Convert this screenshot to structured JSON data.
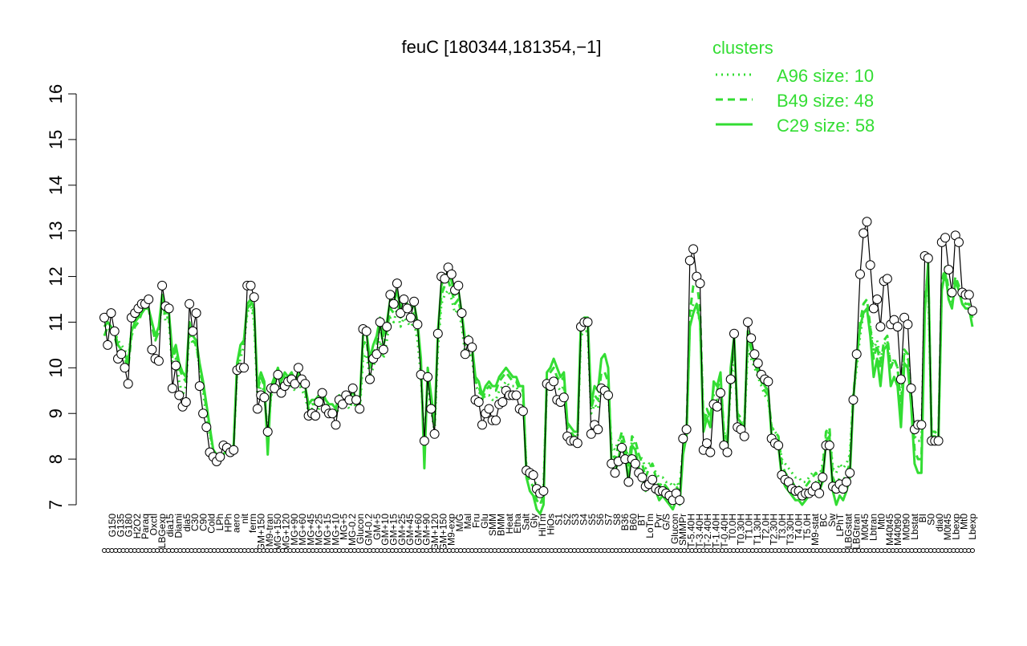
{
  "chart_data": {
    "type": "line",
    "title": "feuC [180344,181354,−1]",
    "xlabel": "",
    "ylabel": "",
    "ylim": [
      7,
      16
    ],
    "yticks": [
      7,
      8,
      9,
      10,
      11,
      12,
      13,
      14,
      15,
      16
    ],
    "grid": false,
    "legend": {
      "title": "clusters",
      "placement": "top-right",
      "color": "#33dd33",
      "entries": [
        {
          "label": "A96 size: 10",
          "style": "dotted"
        },
        {
          "label": "B49 size: 48",
          "style": "dashed"
        },
        {
          "label": "C29 size: 58",
          "style": "solid"
        }
      ]
    },
    "colors": {
      "profile": "#000000",
      "cluster": "#33dd33",
      "point_fill": "#ffffff"
    },
    "x_tick_labels": [
      "G150",
      "G135",
      "G180",
      "H2O2",
      "Paraq",
      "Oxctl",
      "LBGexp",
      "dia15",
      "Diami",
      "dia5",
      "C30",
      "C90",
      "Cold",
      "LPh",
      "HPh",
      "aero",
      "nit",
      "ferm",
      "GM+150",
      "M9-tran",
      "MG+150",
      "MG+120",
      "MG+90",
      "MG+60",
      "MG+45",
      "MG+25",
      "MG+15",
      "MG+10",
      "MG+5",
      "MG-0.2",
      "Glucon",
      "GM-0.2",
      "GM+5",
      "GM+10",
      "GM+15",
      "GM+25",
      "GM+45",
      "GM+60",
      "GM+90",
      "GM+120",
      "GM+150",
      "M9-exp",
      "M/G",
      "Mal",
      "Fru",
      "Glu",
      "SMM",
      "BMM",
      "Heat",
      "Etha",
      "Salt",
      "Gly",
      "HiTm",
      "HiOs",
      "S1",
      "S2",
      "S3",
      "S4",
      "S5",
      "S6",
      "S7",
      "S8",
      "B36",
      "B60",
      "BT",
      "LoTm",
      "Pyr",
      "G/S",
      "Glucon",
      "SMMPr",
      "T-5.40H",
      "T-3.40H",
      "T-2.40H",
      "T-1.40H",
      "T-0.40H",
      "T0.0H",
      "T0.30H",
      "T1.0H",
      "T1.30H",
      "T2.0H",
      "T2.30H",
      "T3.0H",
      "T3.30H",
      "T4.0H",
      "T5.0H",
      "M9-stat",
      "BC",
      "Sw",
      "LPhT",
      "LBGstat",
      "LBGtran",
      "M0t45",
      "Lbtran",
      "Mt0",
      "M40t45",
      "M40t90",
      "M0t90",
      "Lbstat",
      "BI",
      "S0",
      "dia0",
      "M0t45",
      "Lbexp",
      "Mt0",
      "Lbexp"
    ],
    "series": [
      {
        "values": [
          11.1,
          10.5,
          11.2,
          10.8,
          10.2,
          10.3,
          10.0,
          9.65,
          11.1,
          11.2,
          11.3,
          11.4,
          11.4,
          11.5,
          10.4,
          10.2,
          10.15,
          11.8,
          11.35,
          11.3,
          9.55,
          10.05,
          9.4,
          9.15,
          9.25,
          11.4,
          10.8,
          11.2,
          9.6,
          9.0,
          8.7,
          8.15,
          8.05,
          7.95,
          8.05,
          8.3,
          8.25,
          8.15,
          8.2,
          9.95,
          10.0,
          10.0,
          11.8,
          11.8,
          11.55,
          9.1,
          9.4,
          9.35,
          8.6,
          9.55,
          9.55,
          9.85,
          9.45,
          9.6,
          9.7,
          9.75,
          9.65,
          10.0,
          9.75,
          9.65,
          8.95,
          9.0,
          8.95,
          9.25,
          9.45,
          9.1,
          9.0,
          9.0,
          8.75,
          9.3,
          9.2,
          9.4,
          9.3,
          9.55,
          9.3,
          9.1,
          10.85,
          10.8,
          9.75,
          10.2,
          10.3,
          11.0,
          10.4,
          10.9,
          11.6,
          11.4,
          11.85,
          11.2,
          11.5,
          11.3,
          11.1,
          11.45,
          10.95,
          9.85,
          8.4,
          9.8,
          9.1,
          8.55,
          10.75,
          12.0,
          11.95,
          12.2,
          12.05,
          11.7,
          11.8,
          11.2,
          10.3,
          10.6,
          10.45,
          9.3,
          9.25,
          8.75,
          9.0,
          9.1,
          8.85,
          8.85,
          9.2,
          9.25,
          9.5,
          9.4,
          9.4,
          9.4,
          9.1,
          9.05,
          7.75,
          7.7,
          7.65,
          7.35,
          7.25,
          7.3,
          9.65,
          9.6,
          9.7,
          9.3,
          9.25,
          9.35,
          8.5,
          8.4,
          8.4,
          8.35,
          10.9,
          11.0,
          11.0,
          8.55,
          8.75,
          8.65,
          9.55,
          9.5,
          9.4,
          7.9,
          7.7,
          7.95,
          8.25,
          8.0,
          7.5,
          8.0,
          7.9,
          7.7,
          7.6,
          7.4,
          7.45,
          7.55,
          7.35,
          7.3,
          7.3,
          7.25,
          7.2,
          7.1,
          7.25,
          7.1,
          8.45,
          8.65,
          12.35,
          12.6,
          12.0,
          11.85,
          8.2,
          8.35,
          8.15,
          9.2,
          9.15,
          9.45,
          8.3,
          8.15,
          9.75,
          10.75,
          8.7,
          8.65,
          8.5,
          11.0,
          10.65,
          10.3,
          10.1,
          9.85,
          9.75,
          9.7,
          8.45,
          8.35,
          8.3,
          7.65,
          7.55,
          7.5,
          7.35,
          7.3,
          7.3,
          7.2,
          7.25,
          7.25,
          7.3,
          7.4,
          7.25,
          7.6,
          8.3,
          8.3,
          7.4,
          7.35,
          7.45,
          7.35,
          7.5,
          7.7,
          9.3,
          10.3,
          12.05,
          12.95,
          13.2,
          12.25,
          11.3,
          11.5,
          10.9,
          11.9,
          11.95,
          10.95,
          11.05,
          10.9,
          9.75,
          11.1,
          10.95,
          9.55,
          8.65,
          8.75,
          8.75,
          12.45,
          12.4,
          8.4,
          8.4,
          8.4,
          12.75,
          12.85,
          12.15,
          11.65,
          12.9,
          12.75,
          11.65,
          11.6,
          11.6,
          11.25
        ]
      },
      {
        "name": "A96 size: 10",
        "style": "dotted",
        "values": [
          10.9,
          11.0,
          10.9,
          10.8,
          10.6,
          10.5,
          10.4,
          10.2,
          10.8,
          11.1,
          11.2,
          11.3,
          11.3,
          11.3,
          10.9,
          10.6,
          10.8,
          11.5,
          11.0,
          11.0,
          10.0,
          10.2,
          9.7,
          9.4,
          9.6,
          10.8,
          10.5,
          10.5,
          10.0,
          9.5,
          8.9,
          8.5,
          8.2,
          8.1,
          8.1,
          8.2,
          8.3,
          8.2,
          8.3,
          9.9,
          10.2,
          10.5,
          11.2,
          11.4,
          11.0,
          9.4,
          9.6,
          9.5,
          8.5,
          9.4,
          9.5,
          9.6,
          9.5,
          9.6,
          9.6,
          9.6,
          9.5,
          9.7,
          9.5,
          9.4,
          9.0,
          9.1,
          9.0,
          9.1,
          9.2,
          9.1,
          9.0,
          9.0,
          8.9,
          9.2,
          9.1,
          9.2,
          9.1,
          9.3,
          9.1,
          9.0,
          10.2,
          10.3,
          9.8,
          10.0,
          10.3,
          10.6,
          10.2,
          10.6,
          11.1,
          11.0,
          11.3,
          10.9,
          11.1,
          11.0,
          10.9,
          11.0,
          10.6,
          9.8,
          8.4,
          9.6,
          9.1,
          8.6,
          10.4,
          11.4,
          11.6,
          11.7,
          11.5,
          11.2,
          11.3,
          10.9,
          10.3,
          10.4,
          10.2,
          9.6,
          9.5,
          9.3,
          9.4,
          9.4,
          9.3,
          9.3,
          9.5,
          9.6,
          9.7,
          9.6,
          9.6,
          9.6,
          9.4,
          9.4,
          7.8,
          7.7,
          7.6,
          7.4,
          7.3,
          7.4,
          9.6,
          9.7,
          9.8,
          9.6,
          9.5,
          9.6,
          8.6,
          8.5,
          8.5,
          8.5,
          10.7,
          10.8,
          10.8,
          9.0,
          9.2,
          9.1,
          9.6,
          9.6,
          9.5,
          8.3,
          8.2,
          8.4,
          8.5,
          8.3,
          8.0,
          8.4,
          8.3,
          8.1,
          8.0,
          7.8,
          7.9,
          7.9,
          7.7,
          7.6,
          7.6,
          7.5,
          7.5,
          7.4,
          7.5,
          7.4,
          8.2,
          8.5,
          11.0,
          11.4,
          11.3,
          11.0,
          8.8,
          9.0,
          8.8,
          9.4,
          9.3,
          9.6,
          8.6,
          8.4,
          9.6,
          10.3,
          8.9,
          8.8,
          8.7,
          10.4,
          10.2,
          10.0,
          9.8,
          9.6,
          9.4,
          9.3,
          8.7,
          8.6,
          8.5,
          8.0,
          7.9,
          7.8,
          7.7,
          7.6,
          7.6,
          7.5,
          7.5,
          7.6,
          7.7,
          7.7,
          7.6,
          7.9,
          8.5,
          8.6,
          7.8,
          7.7,
          7.9,
          7.8,
          7.9,
          8.1,
          9.4,
          10.0,
          10.7,
          11.2,
          11.3,
          10.9,
          10.4,
          10.6,
          10.2,
          10.5,
          10.6,
          10.0,
          10.2,
          10.0,
          9.3,
          10.3,
          10.2,
          9.4,
          8.5,
          8.4,
          8.4,
          11.6,
          11.8,
          8.6,
          8.6,
          8.5,
          11.8,
          12.0,
          11.6,
          11.4,
          11.9,
          11.7,
          11.4,
          11.3,
          11.3,
          11.1
        ]
      },
      {
        "name": "B49 size: 48",
        "style": "dashed",
        "values": [
          10.7,
          10.9,
          10.8,
          10.7,
          10.4,
          10.3,
          10.2,
          10.0,
          10.7,
          10.9,
          11.0,
          11.2,
          11.3,
          11.3,
          10.9,
          10.6,
          10.8,
          11.5,
          11.1,
          11.1,
          10.2,
          10.4,
          10.0,
          9.8,
          9.7,
          10.9,
          10.6,
          10.5,
          10.0,
          9.6,
          9.1,
          8.6,
          8.2,
          8.1,
          8.1,
          8.1,
          8.2,
          8.2,
          8.3,
          10.0,
          10.4,
          10.6,
          11.3,
          11.4,
          11.2,
          9.5,
          9.8,
          9.6,
          8.4,
          9.5,
          9.7,
          9.9,
          9.6,
          9.8,
          9.7,
          9.8,
          9.6,
          9.8,
          9.6,
          9.5,
          9.1,
          9.2,
          9.2,
          9.3,
          9.4,
          9.2,
          9.1,
          9.1,
          9.0,
          9.3,
          9.2,
          9.3,
          9.2,
          9.4,
          9.2,
          9.1,
          10.5,
          10.6,
          10.0,
          10.3,
          10.5,
          10.9,
          10.5,
          10.8,
          11.3,
          11.2,
          11.5,
          11.1,
          11.3,
          11.2,
          11.1,
          11.2,
          10.9,
          10.1,
          8.1,
          9.9,
          9.3,
          8.7,
          10.7,
          11.6,
          11.8,
          11.9,
          11.7,
          11.4,
          11.5,
          11.1,
          10.5,
          10.6,
          10.4,
          9.7,
          9.6,
          9.3,
          9.5,
          9.6,
          9.5,
          9.5,
          9.7,
          9.8,
          9.9,
          9.8,
          9.7,
          9.7,
          9.5,
          9.5,
          7.7,
          7.5,
          7.4,
          7.1,
          7.0,
          7.2,
          9.8,
          9.9,
          10.0,
          9.8,
          9.7,
          9.8,
          8.7,
          8.6,
          8.5,
          8.5,
          10.9,
          11.0,
          11.0,
          9.1,
          9.4,
          9.3,
          9.9,
          9.9,
          9.7,
          8.2,
          8.0,
          8.3,
          8.6,
          8.3,
          7.8,
          8.5,
          8.4,
          8.1,
          7.9,
          7.6,
          7.8,
          7.9,
          7.6,
          7.4,
          7.5,
          7.4,
          7.3,
          7.2,
          7.4,
          7.3,
          8.2,
          8.6,
          11.2,
          11.8,
          11.9,
          11.3,
          8.8,
          9.1,
          8.9,
          9.6,
          9.5,
          9.8,
          8.6,
          8.4,
          9.8,
          10.5,
          9.0,
          8.9,
          8.8,
          10.7,
          10.4,
          10.1,
          9.9,
          9.7,
          9.5,
          9.4,
          8.7,
          8.6,
          8.5,
          7.9,
          7.7,
          7.6,
          7.5,
          7.4,
          7.4,
          7.3,
          7.4,
          7.5,
          7.6,
          7.7,
          7.5,
          7.8,
          8.6,
          8.7,
          7.6,
          7.4,
          7.6,
          7.5,
          7.7,
          7.9,
          9.4,
          10.2,
          11.0,
          11.4,
          11.5,
          10.9,
          10.2,
          10.5,
          10.0,
          10.6,
          10.7,
          10.0,
          10.2,
          10.0,
          9.1,
          10.4,
          10.3,
          9.5,
          8.2,
          8.0,
          8.0,
          11.4,
          12.2,
          8.6,
          8.6,
          8.5,
          11.9,
          12.2,
          11.7,
          11.5,
          12.0,
          11.8,
          11.5,
          11.4,
          11.4,
          11.1
        ]
      },
      {
        "name": "C29 size: 58",
        "style": "solid",
        "values": [
          10.9,
          11.0,
          10.9,
          10.8,
          10.5,
          10.4,
          10.3,
          10.1,
          10.8,
          11.0,
          11.1,
          11.2,
          11.3,
          11.3,
          11.0,
          10.7,
          10.9,
          11.6,
          11.2,
          11.2,
          10.3,
          10.5,
          10.1,
          9.9,
          9.8,
          11.0,
          10.7,
          10.6,
          10.1,
          9.7,
          9.2,
          8.7,
          8.2,
          8.1,
          8.1,
          8.1,
          8.2,
          8.2,
          8.3,
          10.1,
          10.5,
          10.6,
          11.4,
          11.5,
          11.3,
          9.6,
          9.9,
          9.7,
          8.1,
          9.6,
          9.8,
          10.0,
          9.7,
          9.9,
          9.8,
          9.9,
          9.7,
          9.9,
          9.7,
          9.6,
          9.2,
          9.3,
          9.3,
          9.4,
          9.5,
          9.3,
          9.2,
          9.2,
          9.1,
          9.4,
          9.3,
          9.4,
          9.3,
          9.5,
          9.3,
          9.2,
          10.7,
          10.8,
          10.2,
          10.5,
          10.7,
          11.1,
          10.7,
          11.0,
          11.5,
          11.4,
          11.7,
          11.3,
          11.5,
          11.4,
          11.3,
          11.4,
          11.0,
          10.2,
          7.8,
          10.0,
          9.4,
          8.8,
          10.8,
          11.8,
          12.0,
          12.1,
          11.9,
          11.6,
          11.7,
          11.2,
          10.6,
          10.7,
          10.5,
          9.8,
          9.7,
          9.4,
          9.6,
          9.7,
          9.6,
          9.6,
          9.8,
          9.9,
          10.0,
          9.9,
          9.8,
          9.8,
          9.6,
          9.6,
          7.6,
          7.3,
          7.2,
          6.9,
          6.8,
          7.0,
          9.9,
          10.0,
          10.2,
          10.0,
          9.8,
          9.9,
          8.8,
          8.7,
          8.6,
          8.6,
          11.0,
          11.1,
          11.1,
          9.2,
          9.6,
          9.5,
          10.2,
          10.3,
          10.0,
          7.9,
          7.7,
          8.0,
          8.4,
          8.1,
          7.5,
          8.3,
          8.2,
          7.8,
          7.6,
          7.3,
          7.5,
          7.6,
          7.3,
          7.1,
          7.2,
          7.1,
          7.0,
          6.9,
          7.1,
          7.0,
          8.1,
          8.5,
          10.9,
          11.2,
          11.4,
          11.0,
          8.6,
          8.9,
          8.7,
          9.7,
          9.6,
          9.9,
          8.4,
          8.2,
          10.0,
          10.7,
          8.9,
          8.8,
          8.7,
          10.8,
          10.5,
          10.2,
          10.0,
          9.8,
          9.6,
          9.5,
          8.5,
          8.4,
          8.3,
          7.6,
          7.4,
          7.3,
          7.2,
          7.1,
          7.1,
          7.0,
          7.1,
          7.2,
          7.3,
          7.5,
          7.3,
          7.5,
          8.4,
          8.5,
          7.3,
          7.0,
          7.2,
          7.1,
          7.3,
          7.6,
          9.3,
          10.2,
          10.9,
          11.2,
          11.3,
          10.7,
          9.8,
          10.2,
          9.6,
          10.4,
          10.5,
          9.6,
          9.8,
          9.6,
          8.7,
          10.1,
          10.0,
          9.2,
          7.9,
          7.7,
          7.7,
          11.2,
          12.3,
          8.5,
          8.5,
          8.4,
          11.7,
          12.1,
          11.5,
          11.3,
          11.9,
          11.7,
          11.4,
          11.3,
          11.3,
          10.9
        ]
      }
    ]
  }
}
